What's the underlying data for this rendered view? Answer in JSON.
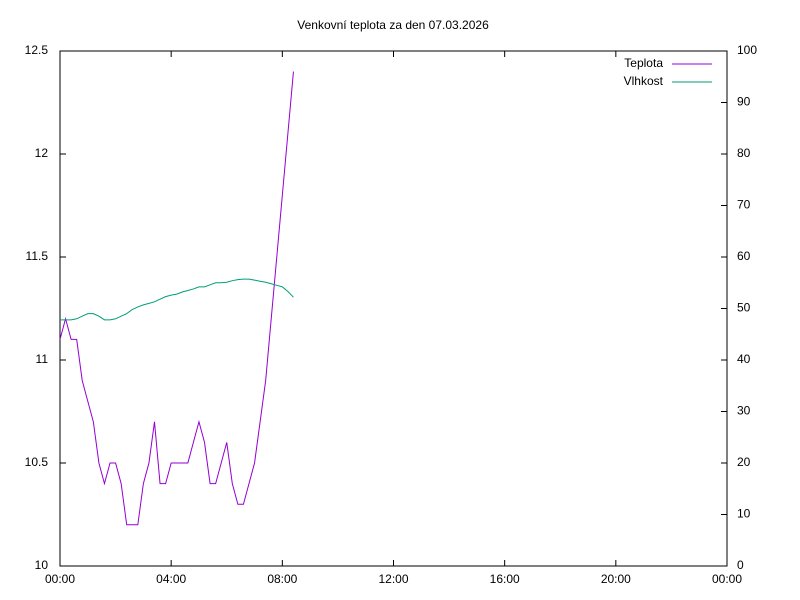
{
  "chart_data": {
    "type": "line",
    "title": "Venkovní teplota za den 07.03.2026",
    "x": [
      0,
      0.2,
      0.4,
      0.6,
      0.8,
      1.0,
      1.2,
      1.4,
      1.6,
      1.8,
      2.0,
      2.2,
      2.4,
      2.6,
      2.8,
      3.0,
      3.2,
      3.4,
      3.6,
      3.8,
      4.0,
      4.2,
      4.4,
      4.6,
      4.8,
      5.0,
      5.2,
      5.4,
      5.6,
      5.8,
      6.0,
      6.2,
      6.4,
      6.6,
      6.8,
      7.0,
      7.2,
      7.4,
      7.6,
      7.8,
      8.0,
      8.2,
      8.4
    ],
    "series": [
      {
        "name": "Teplota",
        "color": "#9400d3",
        "values": [
          11.1,
          11.2,
          11.1,
          11.1,
          10.9,
          10.8,
          10.7,
          10.5,
          10.4,
          10.5,
          10.5,
          10.4,
          10.2,
          10.2,
          10.2,
          10.4,
          10.5,
          10.7,
          10.4,
          10.4,
          10.5,
          10.5,
          10.5,
          10.5,
          10.6,
          10.7,
          10.6,
          10.4,
          10.4,
          10.5,
          10.6,
          10.4,
          10.3,
          10.3,
          10.4,
          10.5,
          10.7,
          10.9,
          11.2,
          11.5,
          11.8,
          12.1,
          12.4
        ]
      },
      {
        "name": "Vlhkost",
        "color": "#009e73",
        "axis": "y2",
        "values": [
          47.8,
          47.8,
          47.8,
          48,
          48.5,
          49,
          49,
          48.5,
          47.8,
          47.8,
          48,
          48.5,
          49,
          49.8,
          50.3,
          50.7,
          51,
          51.3,
          51.8,
          52.3,
          52.6,
          52.8,
          53.2,
          53.5,
          53.8,
          54.2,
          54.2,
          54.6,
          55,
          55,
          55.1,
          55.4,
          55.6,
          55.7,
          55.7,
          55.5,
          55.3,
          55.1,
          54.8,
          54.5,
          54.2,
          53.3,
          52.2
        ]
      }
    ],
    "xlim": [
      0,
      24
    ],
    "xticks": [
      {
        "value": 0,
        "label": "00:00"
      },
      {
        "value": 4,
        "label": "04:00"
      },
      {
        "value": 8,
        "label": "08:00"
      },
      {
        "value": 12,
        "label": "12:00"
      },
      {
        "value": 16,
        "label": "16:00"
      },
      {
        "value": 20,
        "label": "20:00"
      },
      {
        "value": 24,
        "label": "00:00"
      }
    ],
    "ylim": [
      10,
      12.5
    ],
    "yticks": [
      10,
      10.5,
      11,
      11.5,
      12,
      12.5
    ],
    "y2lim": [
      0,
      100
    ],
    "y2ticks": [
      0,
      10,
      20,
      30,
      40,
      50,
      60,
      70,
      80,
      90,
      100
    ],
    "legend": "top right",
    "grid": false
  }
}
